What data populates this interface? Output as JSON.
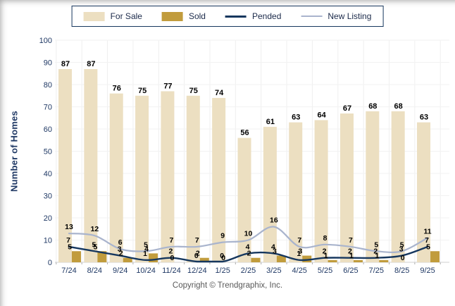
{
  "y_axis_title": "Number of Homes",
  "footer_text": "Copyright © Trendgraphix, Inc.",
  "legend": {
    "items": [
      "For Sale",
      "Sold",
      "Pended",
      "New Listing"
    ]
  },
  "colors": {
    "for_sale": "#ECDFC1",
    "sold": "#C19C3D",
    "pended": "#16375E",
    "new_listing": "#A9B4CD",
    "axis_text": "#1F3864",
    "value_label_text": "#000000",
    "grid_horizontal": "#F2F2F2",
    "grid_vertical": "#EFEFEF",
    "baseline": "#CFCFCF",
    "tick_mark": "#ABABAB",
    "legend_border": "#17375E",
    "footer_text": "#595959",
    "background": "#FFFFFF"
  },
  "chart_data": {
    "type": "bar",
    "subtype": "grouped-bars-with-smoothed-lines",
    "categories": [
      "7/24",
      "8/24",
      "9/24",
      "10/24",
      "11/24",
      "12/24",
      "1/25",
      "2/25",
      "3/25",
      "4/25",
      "5/25",
      "6/25",
      "7/25",
      "8/25",
      "9/25"
    ],
    "series": [
      {
        "name": "For Sale",
        "render_as": "bar",
        "color": "#ECDFC1",
        "values": [
          87,
          87,
          76,
          75,
          77,
          75,
          74,
          56,
          61,
          63,
          64,
          67,
          68,
          68,
          63
        ]
      },
      {
        "name": "Sold",
        "render_as": "bar",
        "color": "#C19C3D",
        "values": [
          5,
          5,
          2,
          4,
          0,
          2,
          0,
          2,
          3,
          3,
          1,
          1,
          1,
          0,
          5
        ]
      },
      {
        "name": "Pended",
        "render_as": "line",
        "color": "#16375E",
        "values": [
          7,
          5,
          3,
          1,
          2,
          0,
          0,
          4,
          4,
          1,
          2,
          2,
          2,
          3,
          7
        ]
      },
      {
        "name": "New Listing",
        "render_as": "line",
        "color": "#A9B4CD",
        "values": [
          13,
          12,
          6,
          5,
          7,
          7,
          9,
          10,
          16,
          7,
          8,
          7,
          5,
          5,
          11
        ]
      }
    ],
    "title": "",
    "xlabel": "",
    "ylabel": "Number of Homes",
    "ylim": [
      0,
      100
    ],
    "ytick_step": 10,
    "grid": true,
    "data_labels": true,
    "legend_position": "top-center"
  }
}
